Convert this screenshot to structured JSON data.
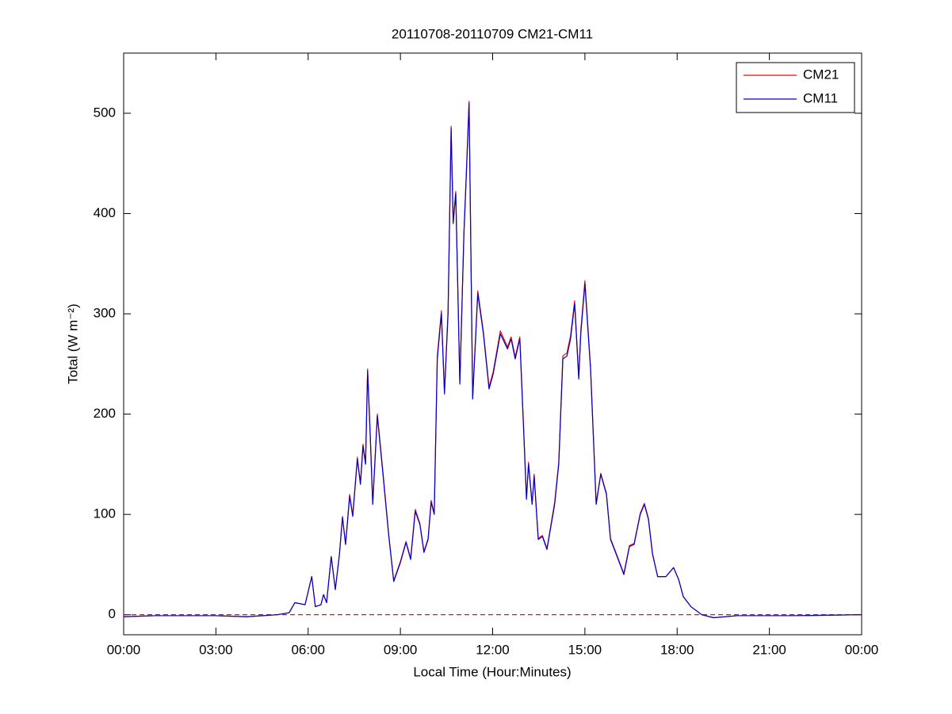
{
  "chart_data": {
    "type": "line",
    "title": "20110708-20110709 CM21-CM11",
    "xlabel": "Local Time (Hour:Minutes)",
    "ylabel": "Total (W m⁻²)",
    "x": [
      0,
      60,
      180,
      240,
      300,
      323,
      334,
      354,
      367,
      374,
      385,
      390,
      396,
      405,
      413,
      421,
      427,
      433,
      441,
      447,
      456,
      462,
      467,
      472,
      476,
      481,
      486,
      495,
      506,
      517,
      527,
      540,
      551,
      560,
      569,
      578,
      586,
      594,
      600,
      606,
      612,
      620,
      626,
      633,
      639,
      643,
      648,
      656,
      664,
      668,
      674,
      681,
      691,
      702,
      713,
      721,
      735,
      749,
      756,
      764,
      773,
      780,
      786,
      790,
      797,
      801,
      809,
      817,
      826,
      841,
      849,
      857,
      865,
      872,
      880,
      888,
      892,
      900,
      911,
      922,
      931,
      942,
      950,
      965,
      976,
      987,
      996,
      1008,
      1016,
      1024,
      1032,
      1042,
      1058,
      1073,
      1083,
      1092,
      1107,
      1128,
      1151,
      1197,
      1305,
      1440
    ],
    "series": [
      {
        "name": "CM21",
        "color": "#ff0000",
        "values": [
          -2,
          -1,
          -1,
          -2,
          0,
          2,
          12,
          10,
          38,
          8,
          10,
          20,
          12,
          58,
          25,
          60,
          98,
          70,
          120,
          99,
          157,
          131,
          170,
          151,
          245,
          182,
          111,
          200,
          142,
          81,
          34,
          53,
          73,
          56,
          105,
          91,
          63,
          76,
          114,
          101,
          258,
          303,
          222,
          303,
          487,
          392,
          422,
          232,
          382,
          432,
          512,
          217,
          323,
          282,
          227,
          242,
          283,
          267,
          277,
          257,
          277,
          192,
          116,
          152,
          111,
          140,
          76,
          79,
          66,
          112,
          152,
          258,
          261,
          278,
          313,
          237,
          283,
          333,
          247,
          111,
          141,
          121,
          76,
          56,
          41,
          69,
          71,
          101,
          111,
          96,
          61,
          38,
          38,
          47,
          35,
          18,
          8,
          0,
          -3,
          -1,
          -1,
          0
        ]
      },
      {
        "name": "CM11",
        "color": "#0000cc",
        "values": [
          -2,
          -1,
          -1,
          -2,
          0,
          2,
          12,
          10,
          38,
          8,
          10,
          20,
          12,
          58,
          25,
          60,
          97,
          70,
          118,
          98,
          155,
          130,
          168,
          150,
          243,
          180,
          110,
          198,
          140,
          80,
          33,
          52,
          72,
          55,
          103,
          90,
          62,
          75,
          112,
          100,
          255,
          300,
          220,
          300,
          485,
          390,
          420,
          230,
          380,
          430,
          510,
          215,
          320,
          280,
          225,
          240,
          280,
          265,
          275,
          255,
          275,
          190,
          115,
          150,
          110,
          138,
          75,
          78,
          65,
          110,
          150,
          255,
          258,
          275,
          310,
          235,
          280,
          330,
          245,
          110,
          140,
          120,
          75,
          55,
          40,
          68,
          70,
          100,
          110,
          95,
          60,
          38,
          38,
          47,
          35,
          18,
          8,
          0,
          -3,
          -1,
          -1,
          0
        ]
      }
    ],
    "xlim": [
      0,
      1440
    ],
    "xticks": [
      {
        "value": 0,
        "label": "00:00"
      },
      {
        "value": 180,
        "label": "03:00"
      },
      {
        "value": 360,
        "label": "06:00"
      },
      {
        "value": 540,
        "label": "09:00"
      },
      {
        "value": 720,
        "label": "12:00"
      },
      {
        "value": 900,
        "label": "15:00"
      },
      {
        "value": 1080,
        "label": "18:00"
      },
      {
        "value": 1260,
        "label": "21:00"
      },
      {
        "value": 1440,
        "label": "00:00"
      }
    ],
    "ylim": [
      -20,
      560
    ],
    "yticks": [
      0,
      100,
      200,
      300,
      400,
      500
    ],
    "reference_line": {
      "value": 0,
      "color": "#c00000"
    },
    "legend": "top-right"
  }
}
